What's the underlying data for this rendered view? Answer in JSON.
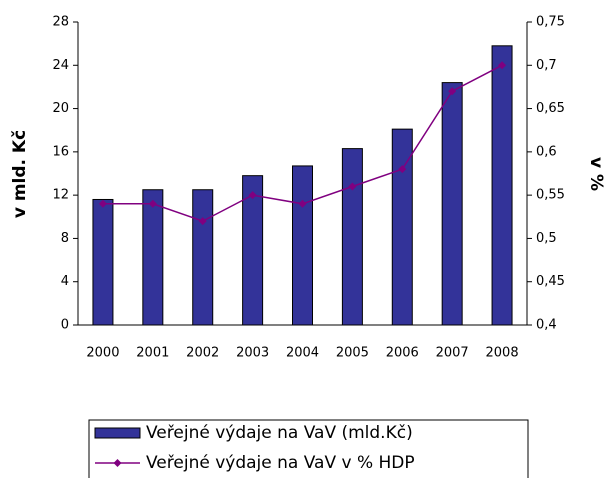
{
  "chart_data": {
    "type": "bar",
    "y_label": "v mld. Kč",
    "y2_label": "v %",
    "categories": [
      "2000",
      "2001",
      "2002",
      "2003",
      "2004",
      "2005",
      "2006",
      "2007",
      "2008"
    ],
    "series": [
      {
        "name": "Veřejné výdaje na VaV (mld.Kč)",
        "type": "bar",
        "color": "#333399",
        "values": [
          11.6,
          12.5,
          12.5,
          13.8,
          14.7,
          16.3,
          18.1,
          22.4,
          25.8
        ]
      },
      {
        "name": "Veřejné výdaje na VaV v % HDP",
        "type": "line",
        "color": "#800080",
        "axis": "y2",
        "values": [
          0.54,
          0.54,
          0.52,
          0.55,
          0.54,
          0.56,
          0.58,
          0.67,
          0.7
        ]
      }
    ],
    "ylim": [
      0,
      28
    ],
    "yticks": [
      0,
      4,
      8,
      12,
      16,
      20,
      24,
      28
    ],
    "y2lim": [
      0.4,
      0.75
    ],
    "y2ticks": [
      {
        "value": 0.4,
        "label": "0,4"
      },
      {
        "value": 0.45,
        "label": "0,45"
      },
      {
        "value": 0.5,
        "label": "0,5"
      },
      {
        "value": 0.55,
        "label": "0,55"
      },
      {
        "value": 0.6,
        "label": "0,6"
      },
      {
        "value": 0.65,
        "label": "0,65"
      },
      {
        "value": 0.7,
        "label": "0,7"
      },
      {
        "value": 0.75,
        "label": "0,75"
      }
    ],
    "grid": false
  }
}
